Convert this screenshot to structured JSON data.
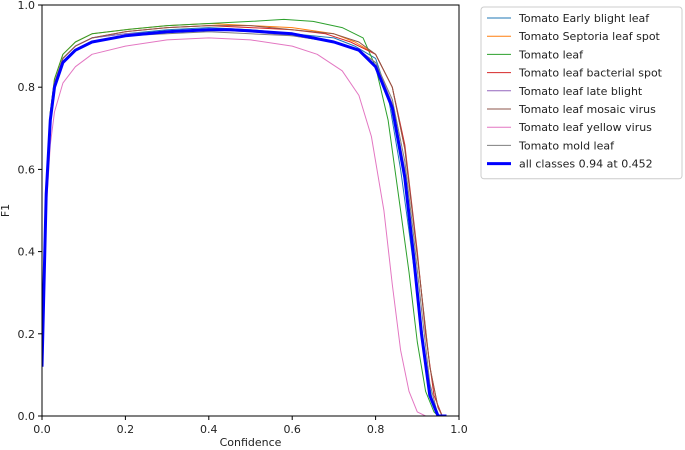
{
  "chart_data": {
    "type": "line",
    "title": "",
    "xlabel": "Confidence",
    "ylabel": "F1",
    "xlim": [
      0,
      1
    ],
    "ylim": [
      0,
      1
    ],
    "grid": false,
    "legend_position": "outside-top-right",
    "xticks": [
      "0.0",
      "0.2",
      "0.4",
      "0.6",
      "0.8",
      "1.0"
    ],
    "yticks": [
      "0.0",
      "0.2",
      "0.4",
      "0.6",
      "0.8",
      "1.0"
    ],
    "series": [
      {
        "name": "Tomato Early blight leaf",
        "color": "#1f77b4",
        "width": 1,
        "x": [
          0.0,
          0.01,
          0.02,
          0.03,
          0.05,
          0.08,
          0.12,
          0.2,
          0.3,
          0.4,
          0.5,
          0.6,
          0.7,
          0.75,
          0.8,
          0.83,
          0.86,
          0.88,
          0.9,
          0.92,
          0.94,
          0.95
        ],
        "y": [
          0.12,
          0.55,
          0.72,
          0.8,
          0.87,
          0.9,
          0.92,
          0.93,
          0.94,
          0.945,
          0.94,
          0.93,
          0.92,
          0.9,
          0.87,
          0.78,
          0.6,
          0.45,
          0.3,
          0.12,
          0.02,
          0.0
        ]
      },
      {
        "name": "Tomato Septoria leaf spot",
        "color": "#ff7f0e",
        "width": 1,
        "x": [
          0.0,
          0.01,
          0.02,
          0.03,
          0.05,
          0.08,
          0.12,
          0.2,
          0.3,
          0.4,
          0.5,
          0.6,
          0.7,
          0.75,
          0.8,
          0.84,
          0.87,
          0.89,
          0.91,
          0.93,
          0.95,
          0.96
        ],
        "y": [
          0.12,
          0.56,
          0.74,
          0.82,
          0.88,
          0.91,
          0.93,
          0.94,
          0.95,
          0.955,
          0.95,
          0.945,
          0.93,
          0.91,
          0.88,
          0.8,
          0.65,
          0.48,
          0.3,
          0.12,
          0.02,
          0.0
        ]
      },
      {
        "name": "Tomato leaf",
        "color": "#2ca02c",
        "width": 1,
        "x": [
          0.0,
          0.01,
          0.02,
          0.03,
          0.05,
          0.08,
          0.12,
          0.2,
          0.3,
          0.4,
          0.5,
          0.58,
          0.65,
          0.72,
          0.77,
          0.8,
          0.83,
          0.86,
          0.88,
          0.9,
          0.92,
          0.94,
          0.95
        ],
        "y": [
          0.12,
          0.56,
          0.74,
          0.82,
          0.88,
          0.91,
          0.93,
          0.94,
          0.95,
          0.955,
          0.96,
          0.965,
          0.96,
          0.945,
          0.92,
          0.85,
          0.72,
          0.5,
          0.35,
          0.18,
          0.06,
          0.01,
          0.0
        ]
      },
      {
        "name": "Tomato leaf bacterial spot",
        "color": "#d62728",
        "width": 1,
        "x": [
          0.0,
          0.01,
          0.02,
          0.03,
          0.05,
          0.08,
          0.12,
          0.2,
          0.3,
          0.4,
          0.5,
          0.6,
          0.68,
          0.74,
          0.8,
          0.84,
          0.87,
          0.9,
          0.92,
          0.94,
          0.96
        ],
        "y": [
          0.12,
          0.55,
          0.73,
          0.81,
          0.87,
          0.9,
          0.92,
          0.935,
          0.945,
          0.95,
          0.945,
          0.94,
          0.93,
          0.91,
          0.88,
          0.8,
          0.66,
          0.4,
          0.2,
          0.05,
          0.0
        ]
      },
      {
        "name": "Tomato leaf late blight",
        "color": "#9467bd",
        "width": 1,
        "x": [
          0.0,
          0.01,
          0.02,
          0.03,
          0.05,
          0.08,
          0.12,
          0.2,
          0.3,
          0.4,
          0.5,
          0.6,
          0.7,
          0.76,
          0.8,
          0.84,
          0.87,
          0.89,
          0.91,
          0.93,
          0.95
        ],
        "y": [
          0.12,
          0.55,
          0.73,
          0.81,
          0.87,
          0.9,
          0.92,
          0.93,
          0.935,
          0.94,
          0.935,
          0.925,
          0.91,
          0.89,
          0.86,
          0.76,
          0.6,
          0.42,
          0.22,
          0.06,
          0.0
        ]
      },
      {
        "name": "Tomato leaf mosaic virus",
        "color": "#8c564b",
        "width": 1,
        "x": [
          0.0,
          0.01,
          0.02,
          0.03,
          0.05,
          0.08,
          0.12,
          0.2,
          0.3,
          0.4,
          0.5,
          0.6,
          0.7,
          0.76,
          0.8,
          0.84,
          0.87,
          0.89,
          0.91,
          0.93,
          0.95,
          0.96
        ],
        "y": [
          0.12,
          0.55,
          0.73,
          0.81,
          0.87,
          0.9,
          0.92,
          0.935,
          0.945,
          0.95,
          0.95,
          0.94,
          0.93,
          0.91,
          0.88,
          0.8,
          0.65,
          0.48,
          0.3,
          0.12,
          0.02,
          0.0
        ]
      },
      {
        "name": "Tomato leaf yellow virus",
        "color": "#e377c2",
        "width": 1,
        "x": [
          0.0,
          0.01,
          0.02,
          0.03,
          0.05,
          0.08,
          0.12,
          0.2,
          0.3,
          0.4,
          0.5,
          0.6,
          0.66,
          0.72,
          0.76,
          0.79,
          0.82,
          0.84,
          0.86,
          0.88,
          0.9,
          0.92
        ],
        "y": [
          0.12,
          0.5,
          0.66,
          0.74,
          0.81,
          0.85,
          0.88,
          0.9,
          0.915,
          0.92,
          0.915,
          0.9,
          0.88,
          0.84,
          0.78,
          0.68,
          0.5,
          0.32,
          0.16,
          0.06,
          0.01,
          0.0
        ]
      },
      {
        "name": "Tomato mold leaf",
        "color": "#7f7f7f",
        "width": 1,
        "x": [
          0.0,
          0.01,
          0.02,
          0.03,
          0.05,
          0.08,
          0.12,
          0.2,
          0.3,
          0.4,
          0.5,
          0.6,
          0.7,
          0.76,
          0.8,
          0.84,
          0.87,
          0.89,
          0.91,
          0.93,
          0.95
        ],
        "y": [
          0.12,
          0.54,
          0.72,
          0.8,
          0.86,
          0.89,
          0.91,
          0.925,
          0.93,
          0.935,
          0.93,
          0.925,
          0.91,
          0.89,
          0.86,
          0.77,
          0.62,
          0.45,
          0.26,
          0.08,
          0.0
        ]
      },
      {
        "name": "all classes 0.94 at 0.452",
        "color": "#0000ff",
        "width": 3,
        "x": [
          0.0,
          0.01,
          0.02,
          0.03,
          0.05,
          0.08,
          0.12,
          0.2,
          0.3,
          0.4,
          0.452,
          0.5,
          0.6,
          0.7,
          0.76,
          0.8,
          0.84,
          0.87,
          0.89,
          0.91,
          0.93,
          0.95,
          0.97
        ],
        "y": [
          0.12,
          0.54,
          0.72,
          0.8,
          0.86,
          0.89,
          0.91,
          0.925,
          0.935,
          0.94,
          0.94,
          0.937,
          0.93,
          0.91,
          0.89,
          0.85,
          0.75,
          0.58,
          0.4,
          0.2,
          0.05,
          0.0,
          0.0
        ]
      }
    ]
  }
}
